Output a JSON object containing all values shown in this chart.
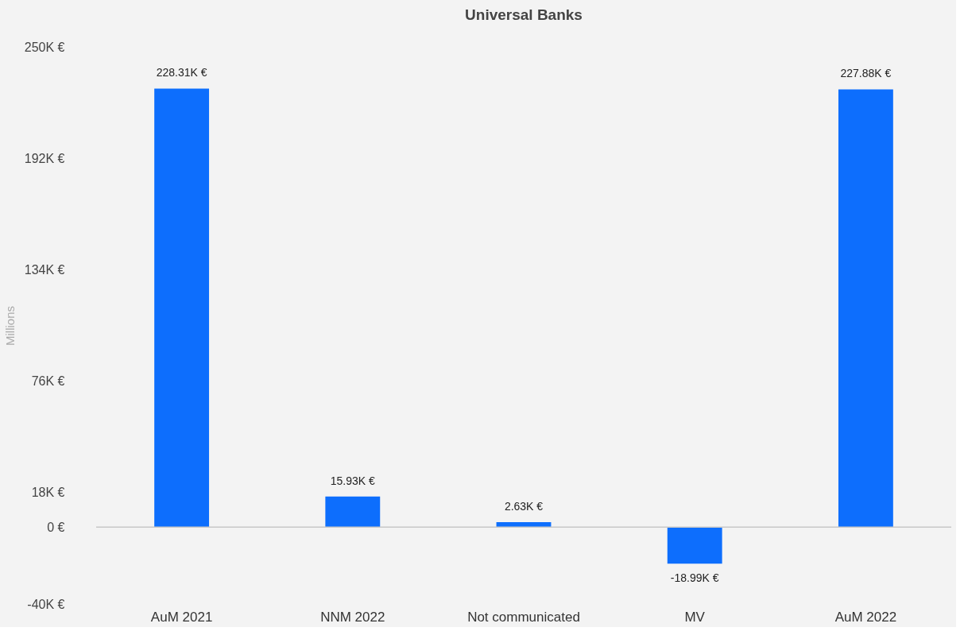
{
  "chart_data": {
    "type": "bar",
    "title": "Universal Banks",
    "ylabel": "Millions",
    "categories": [
      "AuM 2021",
      "NNM 2022",
      "Not communicated",
      "MV",
      "AuM 2022"
    ],
    "values": [
      228.31,
      15.93,
      2.63,
      -18.99,
      227.88
    ],
    "value_labels": [
      "228.31K €",
      "15.93K €",
      "2.63K €",
      "-18.99K €",
      "227.88K €"
    ],
    "color": "#0d6efd",
    "ylim": [
      -40,
      250
    ],
    "yticks": [
      {
        "value": -40,
        "label": "-40K €"
      },
      {
        "value": 0,
        "label": "0 €"
      },
      {
        "value": 18,
        "label": "18K €"
      },
      {
        "value": 76,
        "label": "76K €"
      },
      {
        "value": 134,
        "label": "134K €"
      },
      {
        "value": 192,
        "label": "192K €"
      },
      {
        "value": 250,
        "label": "250K €"
      }
    ],
    "ref_lines": [
      {
        "axis": "y",
        "value": 0,
        "color": "#c8c8c8"
      }
    ],
    "grid": false
  }
}
